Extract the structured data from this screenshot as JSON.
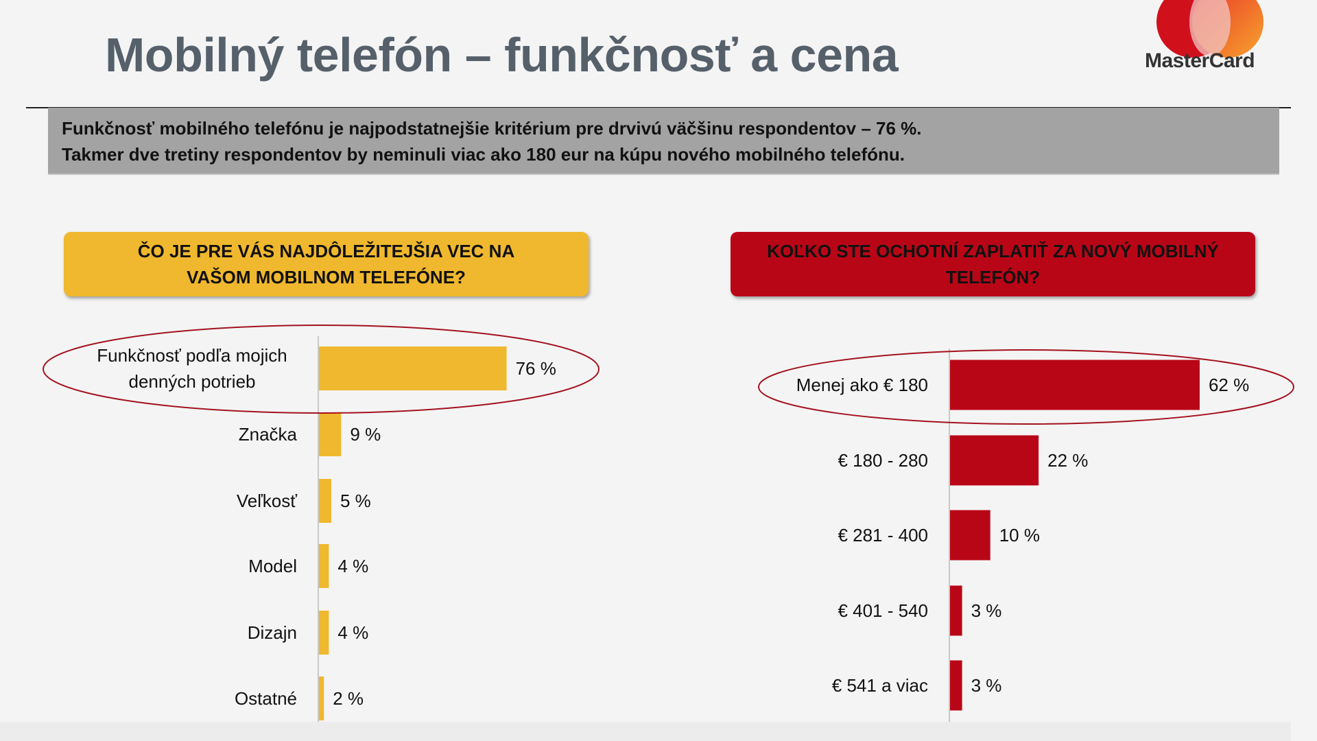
{
  "title": "Mobilný telefón – funkčnosť a cena",
  "logo_text": "MasterCard",
  "summary": [
    "Funkčnosť mobilného telefónu je najpodstatnejšie kritérium pre drvivú väčšinu respondentov – 76 %.",
    "Takmer dve tretiny respondentov by neminuli viac ako 180 eur na kúpu nového mobilného telefónu."
  ],
  "colors": {
    "yellow": "#f0b82e",
    "red": "#b90617",
    "summary_bg": "#a3a3a3",
    "title": "#56606b"
  },
  "chart_data": [
    {
      "type": "bar",
      "orientation": "horizontal",
      "title": "ČO JE PRE VÁS NAJDÔLEŽITEJŠIA VEC NA VAŠOM MOBILNOM TELEFÓNE?",
      "categories": [
        [
          "Funkčnosť podľa mojich",
          "denných potrieb"
        ],
        [
          "Značka"
        ],
        [
          "Veľkosť"
        ],
        [
          "Model"
        ],
        [
          "Dizajn"
        ],
        [
          "Ostatné"
        ]
      ],
      "values": [
        76,
        9,
        5,
        4,
        4,
        2
      ],
      "value_labels": [
        "76 %",
        "9 %",
        "5 %",
        "4 %",
        "4 %",
        "2 %"
      ],
      "unit": "%",
      "highlighted": 0,
      "color": "#f0b82e"
    },
    {
      "type": "bar",
      "orientation": "horizontal",
      "title": "KOĽKO STE OCHOTNÍ ZAPLATIŤ ZA NOVÝ MOBILNÝ TELEFÓN?",
      "categories": [
        [
          "Menej ako € 180"
        ],
        [
          "€ 180 - 280"
        ],
        [
          "€ 281 - 400"
        ],
        [
          "€ 401 - 540"
        ],
        [
          "€ 541 a viac"
        ]
      ],
      "values": [
        62,
        22,
        10,
        3,
        3
      ],
      "value_labels": [
        "62 %",
        "22 %",
        "10 %",
        "3 %",
        "3 %"
      ],
      "unit": "%",
      "highlighted": 0,
      "color": "#b90617"
    }
  ]
}
